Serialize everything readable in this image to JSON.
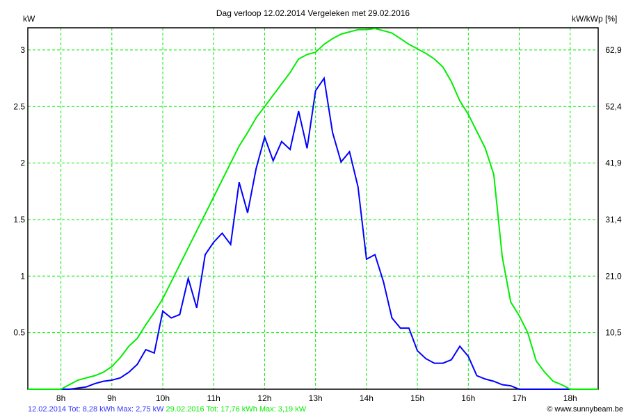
{
  "chart_data": {
    "type": "line",
    "title": "Dag  verloop 12.02.2014   Vergeleken met 29.02.2016",
    "ylabel": "kW",
    "y2label": "kW/kWp [%]",
    "xlim": [
      7.35,
      18.55
    ],
    "ylim": [
      0,
      3.2
    ],
    "grid": true,
    "x_ticks": [
      8,
      9,
      10,
      11,
      12,
      13,
      14,
      15,
      16,
      17,
      18
    ],
    "x_tick_labels": [
      "8h",
      "9h",
      "10h",
      "11h",
      "12h",
      "13h",
      "14h",
      "15h",
      "16h",
      "17h",
      "18h"
    ],
    "y_ticks": [
      0.5,
      1,
      1.5,
      2,
      2.5,
      3
    ],
    "y_tick_labels": [
      "0.5",
      "1",
      "1.5",
      "2",
      "2.5",
      "3"
    ],
    "y2_tick_labels": [
      "10,5",
      "21,0",
      "31,4",
      "41,9",
      "52,4",
      "62,9"
    ],
    "x_start": 8,
    "x_step_hours": 0.16667,
    "series": [
      {
        "name": "12.02.2014",
        "color": "#0000ff",
        "values": [
          0,
          0,
          0.01,
          0.02,
          0.05,
          0.07,
          0.08,
          0.1,
          0.15,
          0.22,
          0.35,
          0.32,
          0.69,
          0.63,
          0.66,
          0.98,
          0.72,
          1.19,
          1.3,
          1.38,
          1.28,
          1.83,
          1.56,
          1.95,
          2.23,
          2.02,
          2.19,
          2.12,
          2.46,
          2.13,
          2.64,
          2.75,
          2.27,
          2.01,
          2.1,
          1.79,
          1.15,
          1.19,
          0.95,
          0.63,
          0.54,
          0.54,
          0.34,
          0.27,
          0.23,
          0.23,
          0.26,
          0.38,
          0.29,
          0.12,
          0.09,
          0.07,
          0.04,
          0.03,
          0,
          0,
          0,
          0,
          0,
          0,
          0,
          0,
          0
        ]
      },
      {
        "name": "29.02.2016",
        "color": "#00ee00",
        "values": [
          0,
          0.04,
          0.08,
          0.1,
          0.12,
          0.15,
          0.2,
          0.28,
          0.38,
          0.45,
          0.57,
          0.68,
          0.8,
          0.95,
          1.1,
          1.25,
          1.4,
          1.55,
          1.7,
          1.85,
          2.0,
          2.15,
          2.27,
          2.4,
          2.5,
          2.6,
          2.7,
          2.8,
          2.92,
          2.96,
          2.98,
          3.05,
          3.1,
          3.14,
          3.16,
          3.18,
          3.18,
          3.19,
          3.17,
          3.15,
          3.1,
          3.05,
          3.01,
          2.97,
          2.92,
          2.85,
          2.72,
          2.55,
          2.43,
          2.28,
          2.13,
          1.9,
          1.17,
          0.77,
          0.65,
          0.5,
          0.25,
          0.15,
          0.07,
          0.04,
          0.0,
          0.0,
          0.0
        ]
      }
    ]
  },
  "footer": {
    "series1_text": "12.02.2014 Tot: 8,28 kWh Max: 2,75 kW",
    "series2_text": "29.02.2016 Tot: 17,76 kWh Max: 3,19 kW",
    "credit": "© www.sunnybeam.be"
  }
}
